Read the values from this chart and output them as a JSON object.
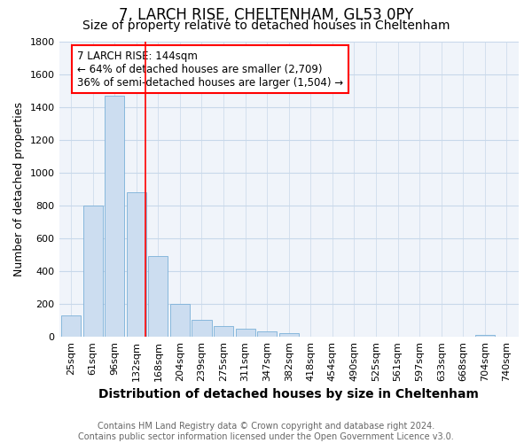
{
  "title": "7, LARCH RISE, CHELTENHAM, GL53 0PY",
  "subtitle": "Size of property relative to detached houses in Cheltenham",
  "xlabel": "Distribution of detached houses by size in Cheltenham",
  "ylabel": "Number of detached properties",
  "bar_labels": [
    "25sqm",
    "61sqm",
    "96sqm",
    "132sqm",
    "168sqm",
    "204sqm",
    "239sqm",
    "275sqm",
    "311sqm",
    "347sqm",
    "382sqm",
    "418sqm",
    "454sqm",
    "490sqm",
    "525sqm",
    "561sqm",
    "597sqm",
    "633sqm",
    "668sqm",
    "704sqm",
    "740sqm"
  ],
  "bar_values": [
    130,
    800,
    1470,
    880,
    490,
    200,
    105,
    65,
    50,
    35,
    25,
    0,
    0,
    0,
    0,
    0,
    0,
    0,
    0,
    15,
    0
  ],
  "bar_color": "#ccddf0",
  "bar_edge_color": "#7ab0d8",
  "grid_color": "#c8d8ea",
  "background_color": "#ffffff",
  "plot_bg_color": "#f0f4fa",
  "vline_color": "red",
  "vline_x": 3.42,
  "annotation_text": "7 LARCH RISE: 144sqm\n← 64% of detached houses are smaller (2,709)\n36% of semi-detached houses are larger (1,504) →",
  "annotation_box_facecolor": "white",
  "annotation_box_edgecolor": "red",
  "ylim": [
    0,
    1800
  ],
  "yticks": [
    0,
    200,
    400,
    600,
    800,
    1000,
    1200,
    1400,
    1600,
    1800
  ],
  "footnote": "Contains HM Land Registry data © Crown copyright and database right 2024.\nContains public sector information licensed under the Open Government Licence v3.0.",
  "title_fontsize": 12,
  "subtitle_fontsize": 10,
  "xlabel_fontsize": 10,
  "ylabel_fontsize": 9,
  "tick_fontsize": 8,
  "annotation_fontsize": 8.5,
  "footnote_fontsize": 7
}
